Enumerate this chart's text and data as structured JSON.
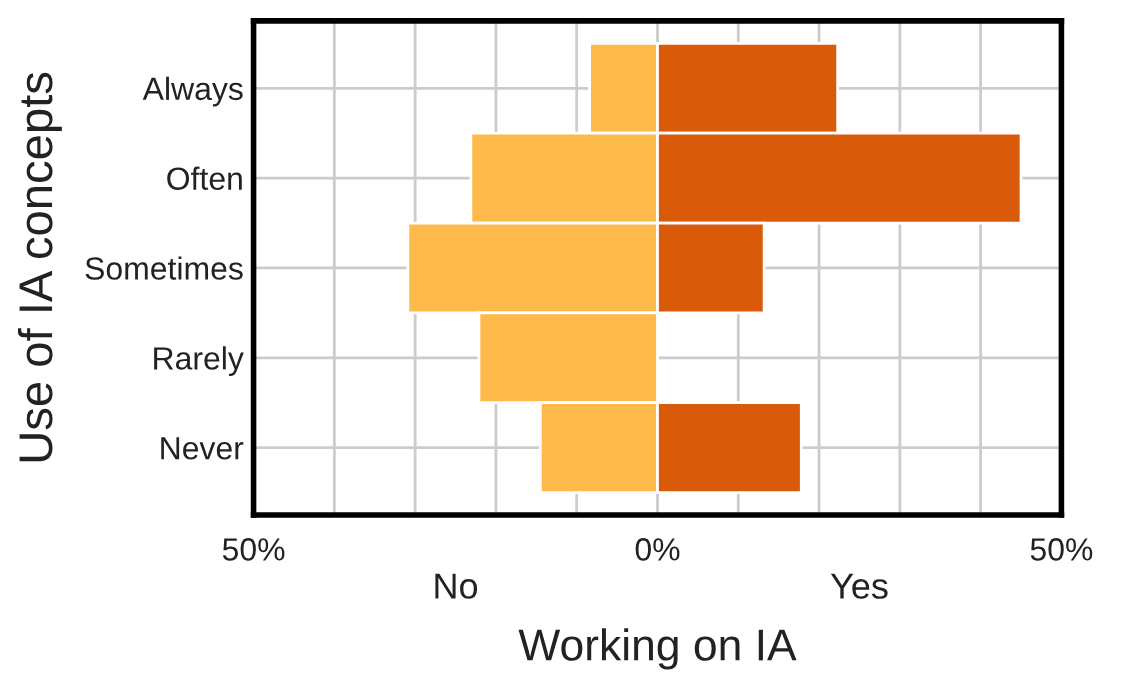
{
  "chart_data": {
    "type": "bar",
    "orientation": "horizontal",
    "xlabel": "Working on IA",
    "ylabel": "Use of IA concepts",
    "categories": [
      "Always",
      "Often",
      "Sometimes",
      "Rarely",
      "Never"
    ],
    "series": [
      {
        "color": "#fdb94a",
        "values": [
          -8.4,
          -23.1,
          -30.9,
          -22.1,
          -14.5
        ]
      },
      {
        "color": "#d95a08",
        "values": [
          22.3,
          45,
          13.2,
          null,
          17.8
        ]
      }
    ],
    "stacked": true,
    "xlim": [
      -50,
      50
    ],
    "xticks": [
      {
        "value": -50,
        "label": "50%"
      },
      {
        "value": -40,
        "label": null
      },
      {
        "value": -30,
        "label": null
      },
      {
        "value": -20,
        "label": null
      },
      {
        "value": -10,
        "label": null
      },
      {
        "value": 0,
        "label": "0%"
      },
      {
        "value": 10,
        "label": null
      },
      {
        "value": 20,
        "label": null
      },
      {
        "value": 30,
        "label": null
      },
      {
        "value": 40,
        "label": null
      },
      {
        "value": 50,
        "label": "50%"
      }
    ],
    "annotations": [
      "No",
      "Yes"
    ],
    "grid": true,
    "legend": false
  }
}
